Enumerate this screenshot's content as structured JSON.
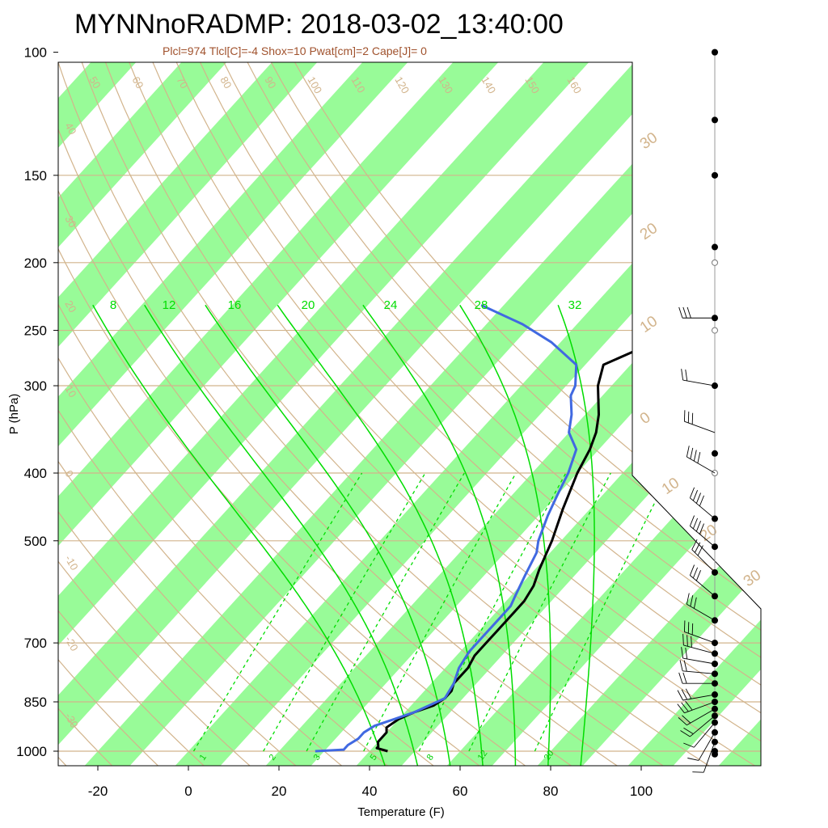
{
  "title": "MYNNnoRADMP: 2018-03-02_13:40:00",
  "subtitle": "Plcl=974 Tlcl[C]=-4 Shox=10 Pwat[cm]=2 Cape[J]= 0",
  "chart_data": {
    "type": "line",
    "xlabel": "Temperature (F)",
    "ylabel": "P (hPa)",
    "y_scale": "log",
    "y_reversed": true,
    "xlim_bottom": [
      -28,
      125
    ],
    "ylim": [
      100,
      1050
    ],
    "x_ticks": [
      -20,
      0,
      20,
      40,
      60,
      80,
      100
    ],
    "y_ticks": [
      100,
      150,
      200,
      250,
      300,
      400,
      500,
      700,
      850,
      1000
    ],
    "x_tick_labels": [
      "-20",
      "0",
      "20",
      "40",
      "60",
      "80",
      "100"
    ],
    "y_tick_labels": [
      "100",
      "150",
      "200",
      "250",
      "300",
      "400",
      "500",
      "700",
      "850",
      "1000"
    ],
    "isotherm_band_colors": [
      "#98fb98",
      "#ffffff"
    ],
    "grid_color": "#d2b48c",
    "temperature_color": "#000000",
    "dewpoint_color": "#4169e1",
    "theta_labels": [
      "50",
      "60",
      "70",
      "80",
      "90",
      "100",
      "110",
      "120",
      "130",
      "140",
      "150",
      "160",
      "40",
      "30",
      "20",
      "10",
      "0",
      "-10",
      "-20",
      "-30"
    ],
    "right_temp_labels": [
      "30",
      "20",
      "10",
      "0",
      "10",
      "20",
      "30"
    ],
    "moist_adiabat_labels": [
      "8",
      "12",
      "16",
      "20",
      "24",
      "28",
      "32"
    ],
    "mixing_ratio_labels": [
      "1",
      "2",
      "3",
      "5",
      "8",
      "12",
      "20"
    ],
    "series": [
      {
        "points": [
          [
            1000,
            44
          ],
          [
            990,
            41
          ],
          [
            985,
            41
          ],
          [
            970,
            40
          ],
          [
            960,
            40
          ],
          [
            940,
            40
          ],
          [
            925,
            39
          ],
          [
            900,
            40
          ],
          [
            880,
            42
          ],
          [
            860,
            45
          ],
          [
            840,
            46
          ],
          [
            820,
            46
          ],
          [
            800,
            45
          ],
          [
            760,
            45
          ],
          [
            730,
            44
          ],
          [
            700,
            44
          ],
          [
            670,
            44
          ],
          [
            640,
            44
          ],
          [
            610,
            44
          ],
          [
            580,
            43
          ],
          [
            550,
            41
          ],
          [
            500,
            38
          ],
          [
            450,
            34
          ],
          [
            400,
            30
          ],
          [
            370,
            28
          ],
          [
            350,
            26
          ],
          [
            330,
            23
          ],
          [
            300,
            17
          ],
          [
            280,
            14
          ],
          [
            265,
            19
          ],
          [
            250,
            27
          ],
          [
            240,
            30
          ],
          [
            230,
            32
          ]
        ]
      },
      {
        "points": [
          [
            1000,
            28
          ],
          [
            995,
            34
          ],
          [
            980,
            34
          ],
          [
            960,
            35
          ],
          [
            940,
            35
          ],
          [
            920,
            36
          ],
          [
            900,
            39
          ],
          [
            880,
            42
          ],
          [
            860,
            44
          ],
          [
            840,
            46
          ],
          [
            800,
            45
          ],
          [
            760,
            43
          ],
          [
            720,
            42
          ],
          [
            680,
            42
          ],
          [
            650,
            42
          ],
          [
            620,
            42
          ],
          [
            600,
            41
          ],
          [
            560,
            39
          ],
          [
            520,
            37
          ],
          [
            500,
            35
          ],
          [
            460,
            32
          ],
          [
            430,
            30
          ],
          [
            400,
            28
          ],
          [
            370,
            25
          ],
          [
            350,
            20
          ],
          [
            330,
            17
          ],
          [
            310,
            13
          ],
          [
            300,
            12
          ],
          [
            280,
            8
          ],
          [
            260,
            -2
          ],
          [
            245,
            -12
          ],
          [
            230,
            -25
          ]
        ]
      }
    ]
  },
  "wind_profile": {
    "levels_hpa": [
      100,
      125,
      150,
      190,
      240,
      300,
      375,
      465,
      510,
      555,
      600,
      650,
      700,
      725,
      750,
      775,
      800,
      830,
      850,
      870,
      890,
      910,
      940,
      970,
      1000,
      1010
    ],
    "open_marker_levels_hpa": [
      100,
      150,
      200,
      250,
      400
    ],
    "barbs": [
      [
        240,
        270,
        25
      ],
      [
        300,
        280,
        20
      ],
      [
        350,
        290,
        30
      ],
      [
        400,
        300,
        35
      ],
      [
        465,
        310,
        40
      ],
      [
        510,
        310,
        35
      ],
      [
        555,
        315,
        30
      ],
      [
        600,
        310,
        30
      ],
      [
        650,
        300,
        30
      ],
      [
        700,
        290,
        25
      ],
      [
        725,
        285,
        25
      ],
      [
        750,
        280,
        20
      ],
      [
        775,
        275,
        20
      ],
      [
        800,
        270,
        20
      ],
      [
        830,
        260,
        25
      ],
      [
        850,
        250,
        25
      ],
      [
        870,
        240,
        20
      ],
      [
        890,
        230,
        15
      ],
      [
        910,
        220,
        10
      ],
      [
        940,
        210,
        10
      ],
      [
        970,
        200,
        10
      ]
    ]
  }
}
